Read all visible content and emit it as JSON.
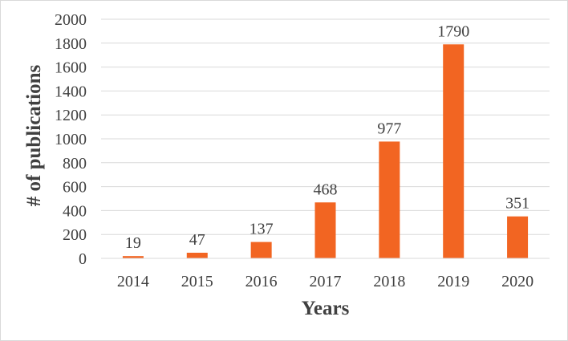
{
  "chart_data": {
    "type": "bar",
    "categories": [
      "2014",
      "2015",
      "2016",
      "2017",
      "2018",
      "2019",
      "2020"
    ],
    "values": [
      19,
      47,
      137,
      468,
      977,
      1790,
      351
    ],
    "data_labels": [
      "19",
      "47",
      "137",
      "468",
      "977",
      "1790",
      "351"
    ],
    "xlabel": "Years",
    "ylabel": "# of publications",
    "ylim": [
      0,
      2000
    ],
    "yticks": [
      "0",
      "200",
      "400",
      "600",
      "800",
      "1000",
      "1200",
      "1400",
      "1600",
      "1800",
      "2000"
    ],
    "grid": true,
    "legend": "none",
    "bar_color": "#f26522",
    "grid_color": "#d9d9d9",
    "text_color": "#404040"
  }
}
